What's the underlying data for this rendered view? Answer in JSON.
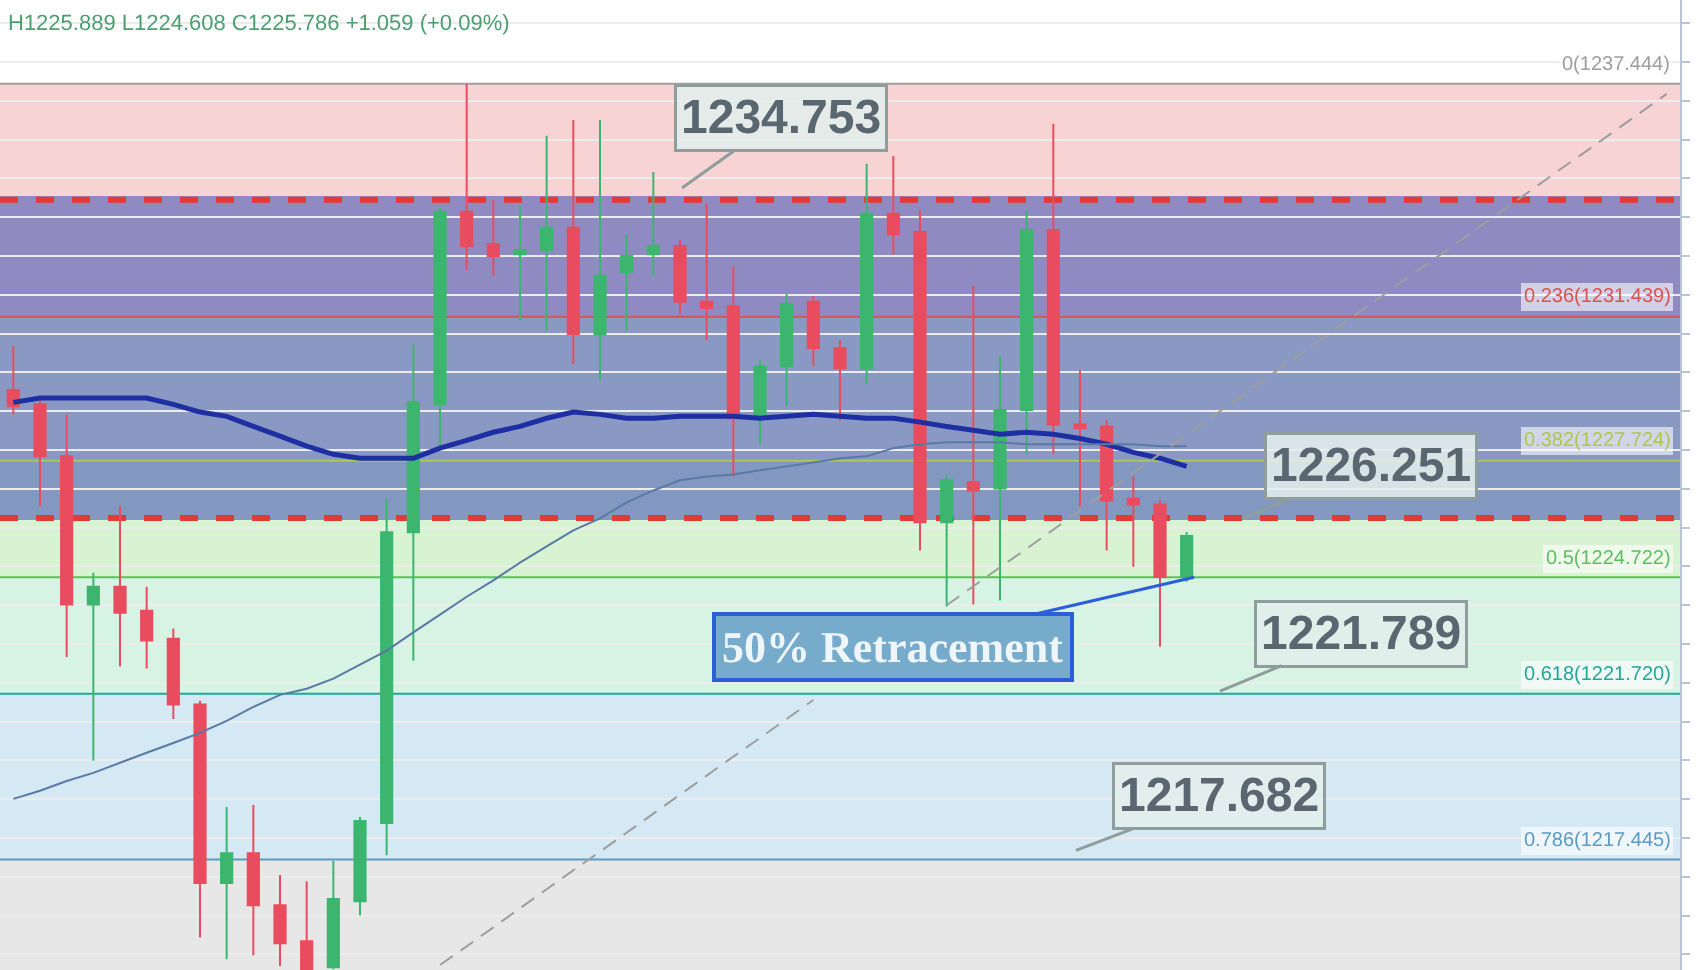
{
  "chart_data": {
    "type": "candlestick",
    "categories": [
      null,
      null,
      null,
      null,
      null,
      null,
      null,
      null,
      null,
      null,
      null,
      null,
      null,
      null,
      null,
      null,
      null,
      null,
      null,
      null,
      null,
      null,
      null,
      null,
      null,
      null,
      null,
      null,
      null,
      null,
      null,
      null,
      null,
      null,
      null,
      null,
      null,
      null,
      null,
      null,
      null,
      null,
      null,
      null,
      null,
      null,
      null,
      null,
      null,
      null,
      null,
      null,
      null,
      null,
      null,
      null,
      null,
      null,
      null,
      null,
      null,
      null,
      null
    ],
    "ohlc": [
      [
        1229.54,
        1230.68,
        1228.92,
        1229.13
      ],
      [
        1229.18,
        1229.34,
        1226.55,
        1227.84
      ],
      [
        1227.84,
        1228.92,
        1222.67,
        1224.02
      ],
      [
        1224.02,
        1224.84,
        1219.99,
        1224.48
      ],
      [
        1224.48,
        1226.55,
        1222.42,
        1223.81
      ],
      [
        1223.86,
        1224.48,
        1222.37,
        1223.09
      ],
      [
        1223.14,
        1223.4,
        1221.07,
        1221.44
      ],
      [
        1221.44,
        1221.54,
        1215.44,
        1216.84
      ],
      [
        1216.84,
        1218.8,
        1214.88,
        1217.61
      ],
      [
        1217.61,
        1218.85,
        1214.98,
        1216.27
      ],
      [
        1216.27,
        1217.05,
        1214.7,
        1215.29
      ],
      [
        1215.34,
        1216.89,
        1214.62,
        1214.62
      ],
      [
        1214.67,
        1217.41,
        1214.62,
        1216.43
      ],
      [
        1216.37,
        1218.54,
        1216.01,
        1218.44
      ],
      [
        1218.39,
        1226.75,
        1217.56,
        1225.88
      ],
      [
        1225.88,
        1230.73,
        1222.57,
        1229.23
      ],
      [
        1229.18,
        1234.24,
        1228.1,
        1234.14
      ],
      [
        1234.14,
        1237.444,
        1232.64,
        1233.26
      ],
      [
        1233.31,
        1234.45,
        1232.49,
        1233.0
      ],
      [
        1233.05,
        1234.29,
        1231.35,
        1233.16
      ],
      [
        1233.16,
        1236.1,
        1231.09,
        1233.73
      ],
      [
        1233.73,
        1236.51,
        1230.21,
        1230.99
      ],
      [
        1230.99,
        1236.51,
        1229.8,
        1232.49
      ],
      [
        1232.59,
        1233.57,
        1231.09,
        1233.0
      ],
      [
        1233.05,
        1235.17,
        1232.49,
        1233.26
      ],
      [
        1233.26,
        1233.42,
        1231.51,
        1231.82
      ],
      [
        1231.82,
        1234.35,
        1230.83,
        1231.66
      ],
      [
        1231.71,
        1232.74,
        1227.32,
        1228.82
      ],
      [
        1228.82,
        1230.32,
        1228.15,
        1230.16
      ],
      [
        1230.16,
        1232.02,
        1229.13,
        1231.76
      ],
      [
        1231.82,
        1231.97,
        1230.16,
        1230.63
      ],
      [
        1230.63,
        1230.83,
        1228.76,
        1230.11
      ],
      [
        1230.11,
        1235.38,
        1229.7,
        1234.09
      ],
      [
        1234.09,
        1235.58,
        1233.05,
        1233.57
      ],
      [
        1233.62,
        1234.19,
        1225.41,
        1226.14
      ],
      [
        1226.14,
        1227.37,
        1223.97,
        1227.22
      ],
      [
        1227.17,
        1232.23,
        1224.02,
        1226.96
      ],
      [
        1227.01,
        1230.42,
        1224.12,
        1229.03
      ],
      [
        1229.03,
        1234.19,
        1227.89,
        1233.67
      ],
      [
        1233.67,
        1236.41,
        1227.89,
        1228.66
      ],
      [
        1228.66,
        1230.06,
        1226.55,
        1228.56
      ],
      [
        1228.61,
        1228.77,
        1225.41,
        1226.7
      ],
      [
        1226.75,
        1227.32,
        1224.99,
        1226.6
      ],
      [
        1226.6,
        1226.7,
        1222.93,
        1224.727
      ],
      [
        1224.73,
        1225.889,
        1224.608,
        1225.786
      ],
      null,
      null,
      null,
      null,
      null,
      null,
      null,
      null,
      null,
      null,
      null,
      null,
      null,
      null,
      null,
      null,
      null,
      null
    ],
    "colors": [
      "#ea4c5f",
      "#ea4c5f",
      "#ea4c5f",
      "#3cb56f",
      "#ea4c5f",
      "#ea4c5f",
      "#ea4c5f",
      "#ea4c5f",
      "#3cb56f",
      "#ea4c5f",
      "#ea4c5f",
      "#ea4c5f",
      "#3cb56f",
      "#3cb56f",
      "#3cb56f",
      "#3cb56f",
      "#3cb56f",
      "#ea4c5f",
      "#ea4c5f",
      "#3cb56f",
      "#3cb56f",
      "#ea4c5f",
      "#3cb56f",
      "#3cb56f",
      "#3cb56f",
      "#ea4c5f",
      "#ea4c5f",
      "#ea4c5f",
      "#3cb56f",
      "#3cb56f",
      "#ea4c5f",
      "#ea4c5f",
      "#3cb56f",
      "#ea4c5f",
      "#ea4c5f",
      "#3cb56f",
      "#ea4c5f",
      "#3cb56f",
      "#3cb56f",
      "#ea4c5f",
      "#ea4c5f",
      "#ea4c5f",
      "#ea4c5f",
      "#ea4c5f",
      "#3cb56f",
      null,
      null,
      null,
      null,
      null,
      null,
      null,
      null,
      null,
      null,
      null,
      null,
      null,
      null,
      null,
      null,
      null,
      null
    ],
    "series": [
      {
        "type": "line",
        "color": "#1d2fa3",
        "values": [
          1229.23,
          1229.34,
          1229.34,
          1229.34,
          1229.34,
          1229.34,
          1229.18,
          1228.98,
          1228.87,
          1228.61,
          1228.36,
          1228.1,
          1227.89,
          1227.79,
          1227.79,
          1227.79,
          1228.05,
          1228.25,
          1228.46,
          1228.61,
          1228.82,
          1228.98,
          1228.92,
          1228.82,
          1228.82,
          1228.87,
          1228.87,
          1228.87,
          1228.82,
          1228.87,
          1228.92,
          1228.87,
          1228.82,
          1228.82,
          1228.72,
          1228.61,
          1228.51,
          1228.41,
          1228.46,
          1228.41,
          1228.3,
          1228.15,
          1227.94,
          1227.79,
          1227.58,
          null,
          null,
          null,
          null,
          null,
          null,
          null,
          null,
          null,
          null,
          null,
          null,
          null,
          null,
          null,
          null,
          null,
          null
        ]
      },
      {
        "type": "line",
        "color": "#5a7aa6",
        "values": [
          1219.01,
          1219.22,
          1219.47,
          1219.68,
          1219.94,
          1220.2,
          1220.45,
          1220.71,
          1221.02,
          1221.38,
          1221.69,
          1221.85,
          1222.11,
          1222.47,
          1222.83,
          1223.3,
          1223.76,
          1224.22,
          1224.64,
          1225.1,
          1225.52,
          1225.93,
          1226.24,
          1226.65,
          1226.96,
          1227.22,
          1227.32,
          1227.37,
          1227.48,
          1227.58,
          1227.68,
          1227.79,
          1227.84,
          1228.05,
          1228.15,
          1228.2,
          1228.2,
          1228.2,
          1228.15,
          1228.15,
          1228.15,
          1228.15,
          1228.15,
          1228.1,
          1228.1,
          null,
          null,
          null,
          null,
          null,
          null,
          null,
          null,
          null,
          null,
          null,
          null,
          null,
          null,
          null,
          null,
          null,
          null
        ]
      },
      {
        "type": "line",
        "color": "#9e9e9e",
        "line_style": "dashed",
        "values": [
          null,
          null,
          null,
          null,
          null,
          null,
          null,
          null,
          null,
          null,
          null,
          null,
          null,
          null,
          null,
          null,
          1214.73,
          1215.21,
          1215.7,
          1216.19,
          1216.68,
          1217.17,
          1217.65,
          1218.14,
          1218.63,
          1219.12,
          1219.61,
          1220.1,
          1220.58,
          1221.07,
          1221.56,
          null,
          null,
          null,
          null,
          1224.0,
          1224.49,
          1224.98,
          1225.46,
          1225.95,
          1226.44,
          1226.93,
          1227.42,
          1227.9,
          1228.39,
          1228.88,
          1229.37,
          1229.86,
          1230.35,
          1230.83,
          1231.32,
          1231.81,
          1232.3,
          1232.79,
          1233.27,
          1233.76,
          1234.25,
          1234.74,
          1235.23,
          1235.71,
          1236.2,
          1236.69,
          1237.18
        ]
      }
    ],
    "ylim": [
      1214.6,
      1239.6
    ],
    "yticks": [
      {
        "value": 1215,
        "label": null
      },
      {
        "value": 1216,
        "label": null
      },
      {
        "value": 1217,
        "label": null
      },
      {
        "value": 1218,
        "label": null
      },
      {
        "value": 1219,
        "label": null
      },
      {
        "value": 1220,
        "label": null
      },
      {
        "value": 1221,
        "label": null
      },
      {
        "value": 1222,
        "label": null
      },
      {
        "value": 1223,
        "label": null
      },
      {
        "value": 1224,
        "label": null
      },
      {
        "value": 1225,
        "label": null
      },
      {
        "value": 1226,
        "label": null
      },
      {
        "value": 1227,
        "label": null
      },
      {
        "value": 1228,
        "label": null
      },
      {
        "value": 1229,
        "label": null
      },
      {
        "value": 1230,
        "label": null
      },
      {
        "value": 1231,
        "label": null
      },
      {
        "value": 1232,
        "label": null
      },
      {
        "value": 1233,
        "label": null
      },
      {
        "value": 1234,
        "label": null
      },
      {
        "value": 1235,
        "label": null
      },
      {
        "value": 1236,
        "label": null
      },
      {
        "value": 1237,
        "label": null
      },
      {
        "value": 1238,
        "label": null
      },
      {
        "value": 1239,
        "label": null
      }
    ],
    "grid": "y",
    "bands": [
      {
        "axis": "y",
        "from": 1231.439,
        "to": 1237.444,
        "color": "#f7d3d4"
      },
      {
        "axis": "y",
        "from": 1227.724,
        "to": 1231.439,
        "color": "#ebf6d6"
      },
      {
        "axis": "y",
        "from": 1224.722,
        "to": 1227.724,
        "color": "#d8f3d1"
      },
      {
        "axis": "y",
        "from": 1221.72,
        "to": 1224.722,
        "color": "#d6f3e4"
      },
      {
        "axis": "y",
        "from": 1217.445,
        "to": 1221.72,
        "color": "#d5e9f5"
      },
      {
        "axis": "y",
        "from": 1214.6,
        "to": 1217.445,
        "color": "#e7e7e7"
      },
      {
        "axis": "y",
        "from": 1226.2,
        "to": 1234.55,
        "color": "#4a5cb5"
      }
    ],
    "ref_lines": [
      {
        "axis": "y",
        "value": 1237.444,
        "label": "0(1237.444)",
        "color": "#9e9e9e"
      },
      {
        "axis": "y",
        "value": 1231.439,
        "label": "0.236(1231.439)",
        "color": "#d9534f"
      },
      {
        "axis": "y",
        "value": 1227.724,
        "label": "0.382(1227.724)",
        "color": "#a9c94f"
      },
      {
        "axis": "y",
        "value": 1224.722,
        "label": "0.5(1224.722)",
        "color": "#5cc15c"
      },
      {
        "axis": "y",
        "value": 1221.72,
        "label": "0.618(1221.720)",
        "color": "#26a69a"
      },
      {
        "axis": "y",
        "value": 1217.445,
        "label": "0.786(1217.445)",
        "color": "#5b9bc5"
      },
      {
        "axis": "y",
        "value": 1234.45,
        "color": "#e53935",
        "line_style": "dashed"
      },
      {
        "axis": "y",
        "value": 1226.251,
        "color": "#e53935",
        "line_style": "dashed"
      }
    ],
    "annotations": [
      "H1225.889 L1224.608 C1225.786 +1.059 (+0.09%)",
      {
        "text": "1234.753",
        "y": 1234.753
      },
      {
        "text": "1226.251",
        "y": 1226.251
      },
      {
        "text": "1221.789",
        "y": 1221.789
      },
      {
        "text": "1217.682",
        "y": 1217.682
      },
      {
        "text": "50% Retracement",
        "y": 1224.722
      }
    ]
  }
}
